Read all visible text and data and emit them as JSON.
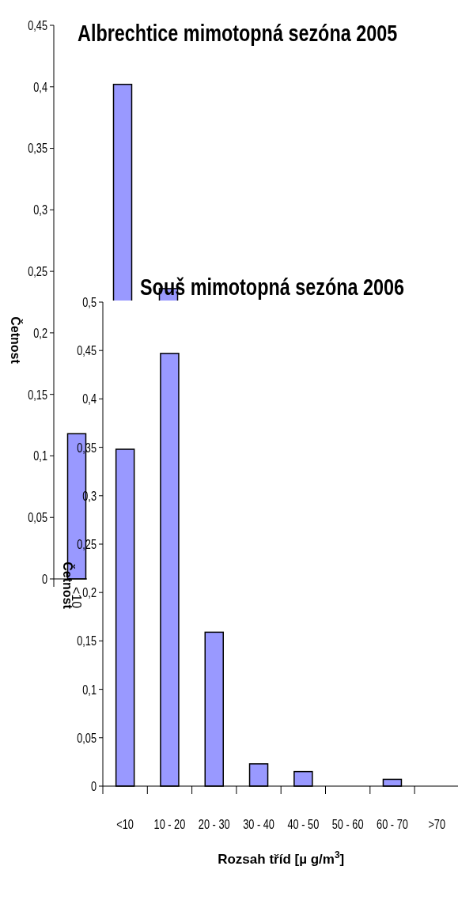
{
  "chart_data": [
    {
      "type": "bar",
      "title": "Albrechtice mimotopná sezóna 2005",
      "ylabel": "Četnost",
      "categories": [
        "<10",
        null,
        null,
        null,
        null,
        null,
        null,
        null
      ],
      "values": [
        0.118,
        0.402,
        0.236,
        null,
        null,
        null,
        null,
        null
      ],
      "color": "#9999ff",
      "ylim": [
        0,
        0.45
      ],
      "yticks": [
        {
          "value": 0,
          "label": "0"
        },
        {
          "value": 0.05,
          "label": "0,05"
        },
        {
          "value": 0.1,
          "label": "0,1"
        },
        {
          "value": 0.15,
          "label": "0,15"
        },
        {
          "value": 0.2,
          "label": "0,2"
        },
        {
          "value": 0.25,
          "label": "0,25"
        },
        {
          "value": 0.3,
          "label": "0,3"
        },
        {
          "value": 0.35,
          "label": "0,35"
        },
        {
          "value": 0.4,
          "label": "0,4"
        },
        {
          "value": 0.45,
          "label": "0,45"
        }
      ],
      "grid": false
    },
    {
      "type": "bar",
      "title": "Souš mimotopná sezóna 2006",
      "xlabel": "Rozsah tříd [µ g/m$^{3}$]",
      "ylabel": "Četnost",
      "categories": [
        "<10",
        "10 - 20",
        "20 - 30",
        "30 - 40",
        "40 - 50",
        "50 - 60",
        "60 - 70",
        ">70"
      ],
      "values": [
        0.348,
        0.447,
        0.159,
        0.023,
        0.015,
        0,
        0.007,
        0
      ],
      "color": "#9999ff",
      "ylim": [
        0,
        0.5
      ],
      "yticks": [
        {
          "value": 0,
          "label": "0"
        },
        {
          "value": 0.05,
          "label": "0,05"
        },
        {
          "value": 0.1,
          "label": "0,1"
        },
        {
          "value": 0.15,
          "label": "0,15"
        },
        {
          "value": 0.2,
          "label": "0,2"
        },
        {
          "value": 0.25,
          "label": "0,25"
        },
        {
          "value": 0.3,
          "label": "0,3"
        },
        {
          "value": 0.35,
          "label": "0,35"
        },
        {
          "value": 0.4,
          "label": "0,4"
        },
        {
          "value": 0.45,
          "label": "0,45"
        },
        {
          "value": 0.5,
          "label": "0,5"
        }
      ],
      "grid": false
    }
  ]
}
